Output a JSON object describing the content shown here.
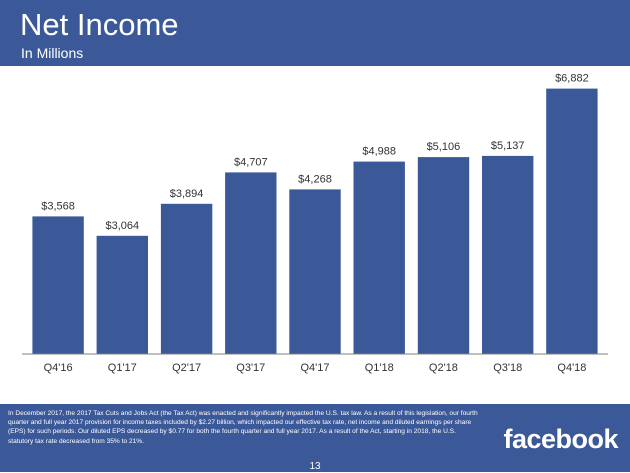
{
  "header": {
    "title": "Net Income",
    "subtitle": "In Millions"
  },
  "colors": {
    "header_bg": "#3b5998",
    "bar": "#3b5998",
    "axis": "#7f7f7f",
    "text": "#333333"
  },
  "chart_data": {
    "type": "bar",
    "categories": [
      "Q4'16",
      "Q1'17",
      "Q2'17",
      "Q3'17",
      "Q4'17",
      "Q1'18",
      "Q2'18",
      "Q3'18",
      "Q4'18"
    ],
    "values": [
      3568,
      3064,
      3894,
      4707,
      4268,
      4988,
      5106,
      5137,
      6882
    ],
    "data_labels": [
      "$3,568",
      "$3,064",
      "$3,894",
      "$4,707",
      "$4,268",
      "$4,988",
      "$5,106",
      "$5,137",
      "$6,882"
    ],
    "ylim": [
      0,
      7000
    ],
    "grid": false,
    "legend": "none"
  },
  "footer": {
    "note": "In December 2017, the 2017 Tax Cuts and Jobs Act (the Tax Act) was enacted and significantly impacted the U.S. tax law. As a result of this legislation, our fourth quarter and full year 2017 provision for income taxes included by $2.27 billion, which impacted our effective tax rate, net income and diluted earnings per share (EPS) for such periods. Our diluted EPS decreased by $0.77 for both the fourth quarter and full year 2017. As a result of the Act, starting in 2018, the U.S. statutory tax rate decreased from 35% to 21%.",
    "logo": "facebook",
    "page_number": "13"
  }
}
